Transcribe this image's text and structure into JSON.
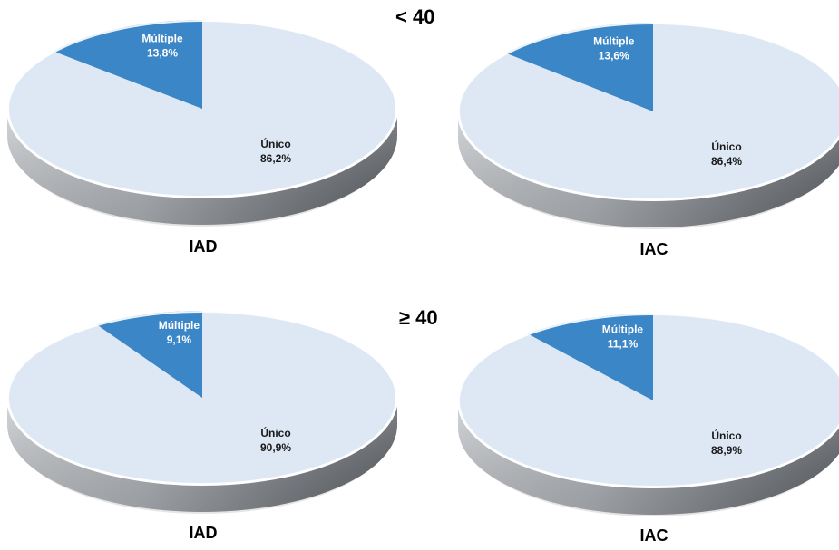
{
  "groups": [
    {
      "title": "< 40"
    },
    {
      "title": "≥ 40"
    }
  ],
  "chart_data": [
    {
      "type": "pie",
      "caption": "IAD",
      "group": "< 40",
      "slices": [
        {
          "label": "Múltiple",
          "value": 13.8,
          "display": "13,8%",
          "color": "#3b86c7"
        },
        {
          "label": "Único",
          "value": 86.2,
          "display": "86,2%",
          "color": "#dde8f4"
        }
      ]
    },
    {
      "type": "pie",
      "caption": "IAC",
      "group": "< 40",
      "slices": [
        {
          "label": "Múltiple",
          "value": 13.6,
          "display": "13,6%",
          "color": "#3b86c7"
        },
        {
          "label": "Único",
          "value": 86.4,
          "display": "86,4%",
          "color": "#dde8f4"
        }
      ]
    },
    {
      "type": "pie",
      "caption": "IAD",
      "group": "≥ 40",
      "slices": [
        {
          "label": "Múltiple",
          "value": 9.1,
          "display": "9,1%",
          "color": "#3b86c7"
        },
        {
          "label": "Único",
          "value": 90.9,
          "display": "90,9%",
          "color": "#dde8f4"
        }
      ]
    },
    {
      "type": "pie",
      "caption": "IAC",
      "group": "≥ 40",
      "slices": [
        {
          "label": "Múltiple",
          "value": 11.1,
          "display": "11,1%",
          "color": "#3b86c7"
        },
        {
          "label": "Único",
          "value": 88.9,
          "display": "88,9%",
          "color": "#dde8f4"
        }
      ]
    }
  ]
}
